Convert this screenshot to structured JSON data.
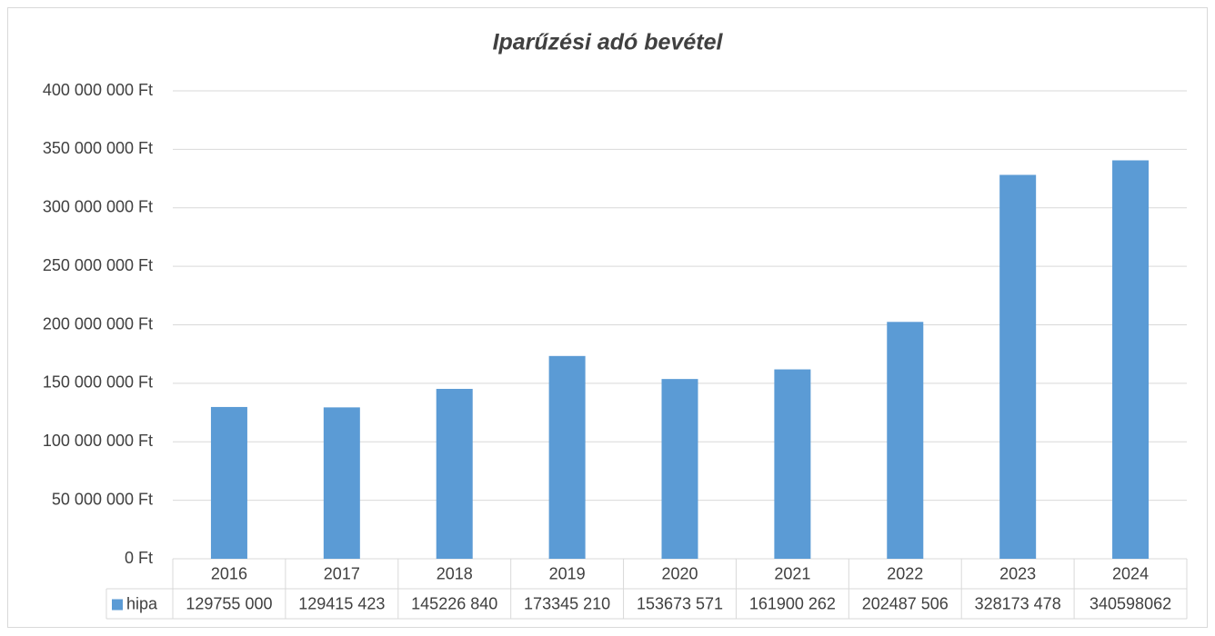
{
  "chart_data": {
    "type": "bar",
    "title": "Iparűzési adó bevétel",
    "categories": [
      "2016",
      "2017",
      "2018",
      "2019",
      "2020",
      "2021",
      "2022",
      "2023",
      "2024"
    ],
    "series": [
      {
        "name": "hipa",
        "color": "#5b9bd5",
        "values": [
          129755000,
          129415423,
          145226840,
          173345210,
          153673571,
          161900262,
          202487506,
          328173478,
          340598062
        ],
        "value_labels": [
          "129755 000",
          "129415 423",
          "145226 840",
          "173345 210",
          "153673 571",
          "161900 262",
          "202487 506",
          "328173 478",
          "340598062"
        ]
      }
    ],
    "ylim": [
      0,
      400000000
    ],
    "yticks": [
      {
        "value": 0,
        "label": "0 Ft"
      },
      {
        "value": 50000000,
        "label": "50 000 000 Ft"
      },
      {
        "value": 100000000,
        "label": "100 000 000 Ft"
      },
      {
        "value": 150000000,
        "label": "150 000 000 Ft"
      },
      {
        "value": 200000000,
        "label": "200 000 000 Ft"
      },
      {
        "value": 250000000,
        "label": "250 000 000 Ft"
      },
      {
        "value": 300000000,
        "label": "300 000 000 Ft"
      },
      {
        "value": 350000000,
        "label": "350 000 000 Ft"
      },
      {
        "value": 400000000,
        "label": "400 000 000 Ft"
      }
    ],
    "grid": true,
    "data_table": true
  }
}
